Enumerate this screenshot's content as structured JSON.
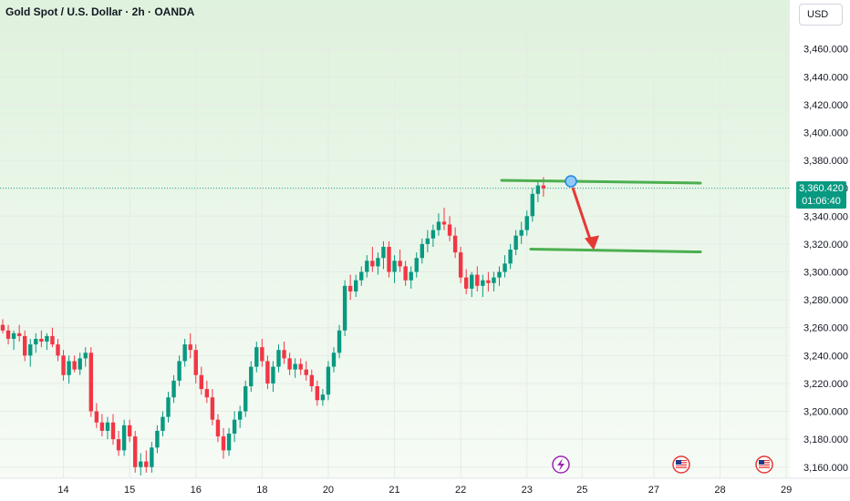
{
  "header": {
    "title": "Gold Spot / U.S. Dollar · 2h · OANDA",
    "currency": "USD"
  },
  "last_price": {
    "value": "3,360.420",
    "countdown": "01:06:40"
  },
  "colors": {
    "up": "#089981",
    "down": "#f23645",
    "level_line": "#4caf50",
    "arrow": "#e53935"
  },
  "icons": {
    "event1": "lightning-icon",
    "event2": "us-flag-icon",
    "event3": "us-flag-icon"
  },
  "chart_data": {
    "type": "candlestick",
    "title": "Gold Spot / U.S. Dollar · 2h · OANDA",
    "xlabel": "",
    "ylabel": "",
    "ylim": [
      3152,
      3482
    ],
    "y_ticks": [
      "3,160.000",
      "3,180.000",
      "3,200.000",
      "3,220.000",
      "3,240.000",
      "3,260.000",
      "3,280.000",
      "3,300.000",
      "3,320.000",
      "3,340.000",
      "3,360.000",
      "3,380.000",
      "3,400.000",
      "3,420.000",
      "3,440.000",
      "3,460.000"
    ],
    "y_tick_values": [
      3160,
      3180,
      3200,
      3220,
      3240,
      3260,
      3280,
      3300,
      3320,
      3340,
      3360,
      3380,
      3400,
      3420,
      3440,
      3460
    ],
    "x_ticks": [
      "14",
      "15",
      "16",
      "18",
      "20",
      "21",
      "22",
      "23",
      "25",
      "27",
      "28",
      "29"
    ],
    "x_tick_index": [
      11,
      23,
      35,
      47,
      59,
      71,
      83,
      95,
      105,
      118,
      130,
      142
    ],
    "candles": [
      [
        3262,
        3266,
        3256,
        3258
      ],
      [
        3258,
        3262,
        3248,
        3252
      ],
      [
        3252,
        3258,
        3244,
        3256
      ],
      [
        3256,
        3262,
        3250,
        3254
      ],
      [
        3254,
        3258,
        3236,
        3240
      ],
      [
        3240,
        3252,
        3232,
        3248
      ],
      [
        3248,
        3256,
        3242,
        3252
      ],
      [
        3252,
        3258,
        3246,
        3250
      ],
      [
        3250,
        3256,
        3244,
        3254
      ],
      [
        3254,
        3260,
        3246,
        3248
      ],
      [
        3248,
        3252,
        3236,
        3240
      ],
      [
        3240,
        3244,
        3222,
        3226
      ],
      [
        3226,
        3240,
        3220,
        3236
      ],
      [
        3236,
        3240,
        3228,
        3230
      ],
      [
        3230,
        3242,
        3226,
        3238
      ],
      [
        3238,
        3246,
        3232,
        3242
      ],
      [
        3242,
        3246,
        3196,
        3200
      ],
      [
        3200,
        3206,
        3188,
        3192
      ],
      [
        3192,
        3198,
        3182,
        3186
      ],
      [
        3186,
        3196,
        3180,
        3192
      ],
      [
        3192,
        3198,
        3176,
        3180
      ],
      [
        3180,
        3186,
        3168,
        3172
      ],
      [
        3172,
        3194,
        3168,
        3190
      ],
      [
        3190,
        3194,
        3178,
        3182
      ],
      [
        3182,
        3186,
        3156,
        3160
      ],
      [
        3160,
        3170,
        3154,
        3164
      ],
      [
        3164,
        3172,
        3156,
        3160
      ],
      [
        3160,
        3178,
        3156,
        3174
      ],
      [
        3174,
        3190,
        3170,
        3186
      ],
      [
        3186,
        3200,
        3182,
        3196
      ],
      [
        3196,
        3214,
        3192,
        3210
      ],
      [
        3210,
        3226,
        3206,
        3222
      ],
      [
        3222,
        3240,
        3218,
        3236
      ],
      [
        3236,
        3252,
        3232,
        3248
      ],
      [
        3248,
        3256,
        3238,
        3244
      ],
      [
        3244,
        3248,
        3220,
        3226
      ],
      [
        3226,
        3232,
        3212,
        3216
      ],
      [
        3216,
        3222,
        3206,
        3210
      ],
      [
        3210,
        3216,
        3190,
        3194
      ],
      [
        3194,
        3198,
        3178,
        3182
      ],
      [
        3182,
        3188,
        3166,
        3172
      ],
      [
        3172,
        3188,
        3168,
        3184
      ],
      [
        3184,
        3200,
        3178,
        3194
      ],
      [
        3194,
        3204,
        3188,
        3200
      ],
      [
        3200,
        3222,
        3196,
        3218
      ],
      [
        3218,
        3236,
        3214,
        3232
      ],
      [
        3232,
        3250,
        3228,
        3246
      ],
      [
        3246,
        3252,
        3232,
        3236
      ],
      [
        3236,
        3240,
        3216,
        3220
      ],
      [
        3220,
        3236,
        3214,
        3232
      ],
      [
        3232,
        3248,
        3228,
        3244
      ],
      [
        3244,
        3250,
        3234,
        3238
      ],
      [
        3238,
        3242,
        3226,
        3230
      ],
      [
        3230,
        3238,
        3224,
        3234
      ],
      [
        3234,
        3238,
        3226,
        3230
      ],
      [
        3230,
        3236,
        3222,
        3226
      ],
      [
        3226,
        3230,
        3214,
        3218
      ],
      [
        3218,
        3222,
        3204,
        3208
      ],
      [
        3208,
        3216,
        3204,
        3212
      ],
      [
        3212,
        3236,
        3208,
        3232
      ],
      [
        3232,
        3246,
        3228,
        3242
      ],
      [
        3242,
        3262,
        3238,
        3258
      ],
      [
        3258,
        3294,
        3254,
        3290
      ],
      [
        3290,
        3298,
        3280,
        3286
      ],
      [
        3286,
        3298,
        3282,
        3294
      ],
      [
        3294,
        3304,
        3290,
        3300
      ],
      [
        3300,
        3312,
        3296,
        3308
      ],
      [
        3308,
        3318,
        3300,
        3304
      ],
      [
        3304,
        3314,
        3298,
        3310
      ],
      [
        3310,
        3322,
        3302,
        3318
      ],
      [
        3318,
        3322,
        3296,
        3300
      ],
      [
        3300,
        3312,
        3292,
        3308
      ],
      [
        3308,
        3316,
        3300,
        3304
      ],
      [
        3304,
        3308,
        3290,
        3294
      ],
      [
        3294,
        3304,
        3288,
        3300
      ],
      [
        3300,
        3314,
        3296,
        3310
      ],
      [
        3310,
        3324,
        3306,
        3320
      ],
      [
        3320,
        3330,
        3314,
        3324
      ],
      [
        3324,
        3334,
        3318,
        3330
      ],
      [
        3330,
        3342,
        3326,
        3336
      ],
      [
        3336,
        3346,
        3330,
        3334
      ],
      [
        3334,
        3340,
        3322,
        3326
      ],
      [
        3326,
        3332,
        3310,
        3314
      ],
      [
        3314,
        3318,
        3292,
        3296
      ],
      [
        3296,
        3302,
        3284,
        3288
      ],
      [
        3288,
        3300,
        3282,
        3298
      ],
      [
        3298,
        3304,
        3286,
        3290
      ],
      [
        3290,
        3298,
        3282,
        3294
      ],
      [
        3294,
        3300,
        3286,
        3292
      ],
      [
        3292,
        3300,
        3286,
        3296
      ],
      [
        3296,
        3304,
        3290,
        3300
      ],
      [
        3300,
        3312,
        3296,
        3306
      ],
      [
        3306,
        3320,
        3302,
        3316
      ],
      [
        3316,
        3330,
        3312,
        3326
      ],
      [
        3326,
        3336,
        3320,
        3330
      ],
      [
        3330,
        3344,
        3326,
        3340
      ],
      [
        3340,
        3360,
        3336,
        3356
      ],
      [
        3356,
        3366,
        3350,
        3362
      ],
      [
        3362,
        3368,
        3354,
        3360
      ]
    ]
  },
  "annotations": {
    "resistance_level": 3367,
    "support_level": 3315
  }
}
